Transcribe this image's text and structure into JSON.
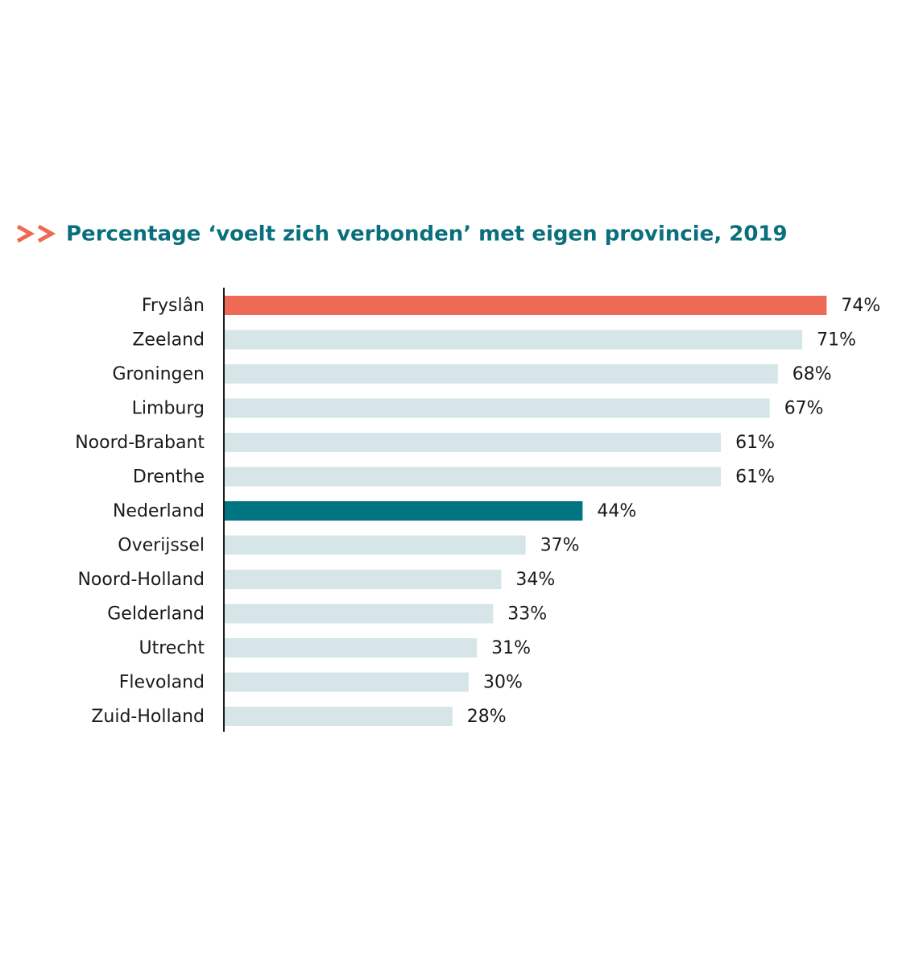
{
  "chart_data": {
    "type": "bar",
    "orientation": "horizontal",
    "title": "Percentage ‘voelt zich verbonden’ met eigen provincie, 2019",
    "categories": [
      "Fryslân",
      "Zeeland",
      "Groningen",
      "Limburg",
      "Noord-Brabant",
      "Drenthe",
      "Nederland",
      "Overijssel",
      "Noord-Holland",
      "Gelderland",
      "Utrecht",
      "Flevoland",
      "Zuid-Holland"
    ],
    "values": [
      74,
      71,
      68,
      67,
      61,
      61,
      44,
      37,
      34,
      33,
      31,
      30,
      28
    ],
    "value_labels": [
      "74%",
      "71%",
      "68%",
      "67%",
      "61%",
      "61%",
      "44%",
      "37%",
      "34%",
      "33%",
      "31%",
      "30%",
      "28%"
    ],
    "colors": [
      "#ee6a55",
      "#d5e5e8",
      "#d5e5e8",
      "#d5e5e8",
      "#d5e5e8",
      "#d5e5e8",
      "#007582",
      "#d5e5e8",
      "#d5e5e8",
      "#d5e5e8",
      "#d5e5e8",
      "#d5e5e8",
      "#d5e5e8"
    ]
  }
}
